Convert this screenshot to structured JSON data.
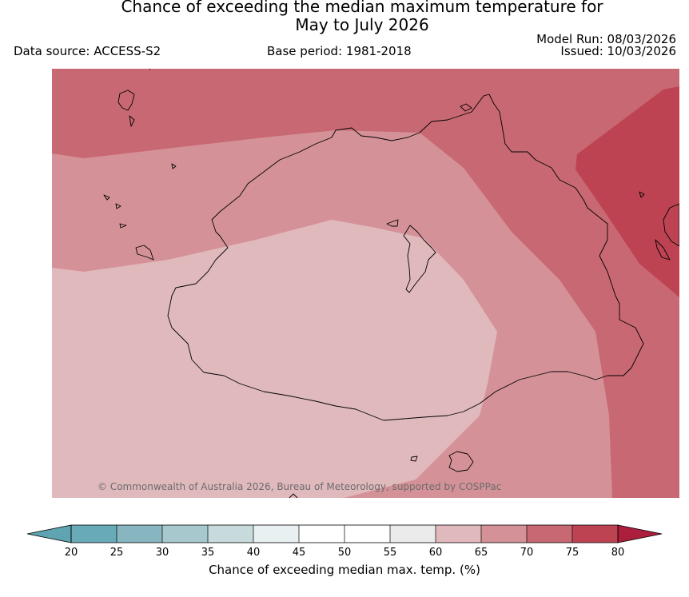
{
  "title": {
    "line1": "Chance of exceeding the median maximum temperature for",
    "line2": "May to July 2026"
  },
  "info": {
    "data_source": "Data source: ACCESS-S2",
    "base_period": "Base period: 1981-2018",
    "model_run": "Model Run: 08/03/2026",
    "issued": "Issued: 10/03/2026"
  },
  "map": {
    "copyright": "© Commonwealth of Australia 2026, Bureau of Meteorology, supported by COSPPac",
    "zone_colors": {
      "45-60": "#ffffff",
      "60-65": "#e0b9bd",
      "65-70": "#d49298",
      "70-75": "#c86872",
      "75-80": "#be4352"
    }
  },
  "colorbar": {
    "label": "Chance of exceeding median max. temp. (%)",
    "ticks": [
      "20",
      "25",
      "30",
      "35",
      "40",
      "45",
      "50",
      "55",
      "60",
      "65",
      "70",
      "75",
      "80"
    ],
    "colors": [
      "#69aab8",
      "#87b6c1",
      "#a7c8cd",
      "#c7dadc",
      "#e9f0f2",
      "#ffffff",
      "#ffffff",
      "#ebebeb",
      "#e0b9bd",
      "#d49298",
      "#c86872",
      "#be4352"
    ],
    "under_color": "#5ea4b1",
    "over_color": "#ab1e3c"
  }
}
